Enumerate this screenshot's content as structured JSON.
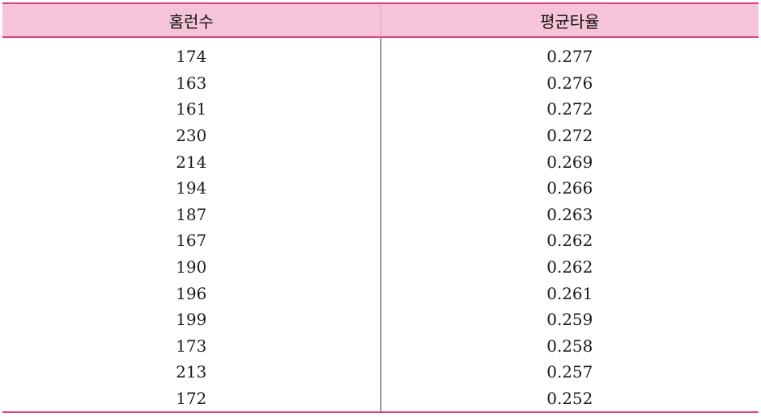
{
  "table": {
    "headers": [
      "홈런수",
      "평균타율"
    ],
    "rows": [
      [
        "174",
        "0.277"
      ],
      [
        "163",
        "0.276"
      ],
      [
        "161",
        "0.272"
      ],
      [
        "230",
        "0.272"
      ],
      [
        "214",
        "0.269"
      ],
      [
        "194",
        "0.266"
      ],
      [
        "187",
        "0.263"
      ],
      [
        "167",
        "0.262"
      ],
      [
        "190",
        "0.262"
      ],
      [
        "196",
        "0.261"
      ],
      [
        "199",
        "0.259"
      ],
      [
        "173",
        "0.258"
      ],
      [
        "213",
        "0.257"
      ],
      [
        "172",
        "0.252"
      ]
    ]
  },
  "colors": {
    "header_bg": "#f6c4d8",
    "rule": "#e0407f"
  }
}
